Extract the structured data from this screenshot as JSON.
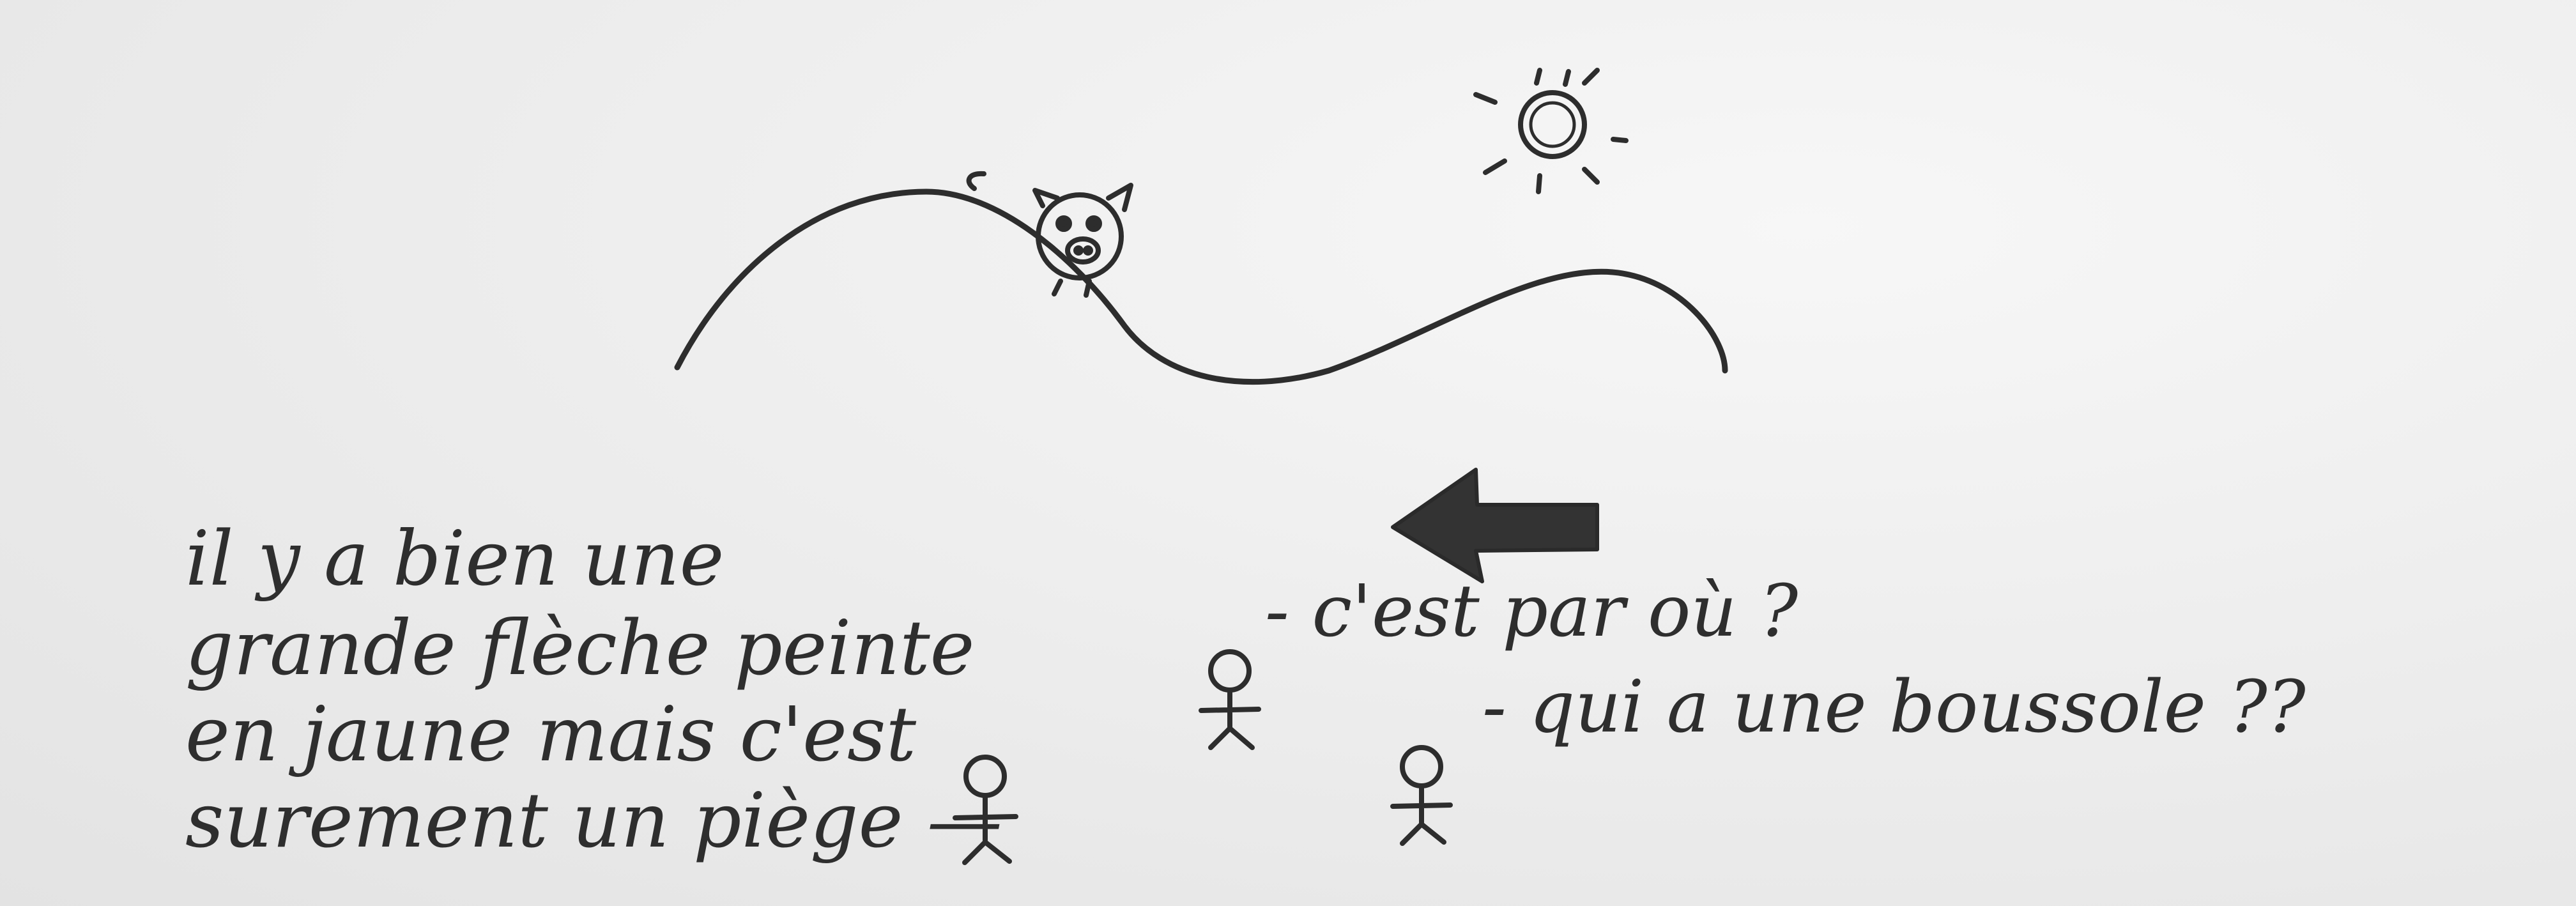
{
  "scene": {
    "left_note_lines": [
      "il y a bien une",
      "grande flèche peinte",
      "en jaune mais c'est",
      "surement un piège —"
    ],
    "speech_1": "- c'est par où ?",
    "speech_2": "- qui a une boussole ??",
    "elements": [
      "hill",
      "pig-character",
      "sun",
      "arrow",
      "stick-figure"
    ]
  },
  "colors": {
    "paper": "#ededed",
    "ink": "#2d2d2d"
  }
}
